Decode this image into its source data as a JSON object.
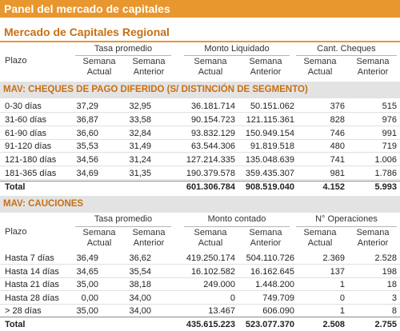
{
  "banner": {
    "title": "Panel del mercado de capitales"
  },
  "subtitle": "Mercado de Capitales Regional",
  "table1": {
    "plazo_label": "Plazo",
    "groups": [
      "Tasa promedio",
      "Monto Liquidado",
      "Cant. Cheques"
    ],
    "sub_top": [
      "Semana",
      "Semana",
      "Semana",
      "Semana",
      "Semana",
      "Semana"
    ],
    "sub_bottom": [
      "Actual",
      "Anterior",
      "Actual",
      "Anterior",
      "Actual",
      "Anterior"
    ],
    "section": "MAV: CHEQUES DE PAGO DIFERIDO (S/ DISTINCIÓN DE SEGMENTO)",
    "rows": [
      {
        "label": "0-30 días",
        "values": [
          "37,29",
          "32,95",
          "36.181.714",
          "50.151.062",
          "376",
          "515"
        ]
      },
      {
        "label": "31-60 días",
        "values": [
          "36,87",
          "33,58",
          "90.154.723",
          "121.115.361",
          "828",
          "976"
        ]
      },
      {
        "label": "61-90 días",
        "values": [
          "36,60",
          "32,84",
          "93.832.129",
          "150.949.154",
          "746",
          "991"
        ]
      },
      {
        "label": "91-120 días",
        "values": [
          "35,53",
          "31,49",
          "63.544.306",
          "91.819.518",
          "480",
          "719"
        ]
      },
      {
        "label": "121-180 días",
        "values": [
          "34,56",
          "31,24",
          "127.214.335",
          "135.048.639",
          "741",
          "1.006"
        ]
      },
      {
        "label": "181-365 días",
        "values": [
          "34,69",
          "31,35",
          "190.379.578",
          "359.435.307",
          "981",
          "1.786"
        ]
      },
      {
        "label": "Total",
        "values": [
          "",
          "",
          "601.306.784",
          "908.519.040",
          "4.152",
          "5.993"
        ]
      }
    ]
  },
  "table2": {
    "section": "MAV: CAUCIONES",
    "plazo_label": "Plazo",
    "groups": [
      "Tasa promedio",
      "Monto contado",
      "N° Operaciones"
    ],
    "sub_top": [
      "Semana",
      "Semana",
      "Semana",
      "Semana",
      "Semana",
      "Semana"
    ],
    "sub_bottom": [
      "Actual",
      "Anterior",
      "Actual",
      "Anterior",
      "Actual",
      "Anterior"
    ],
    "rows": [
      {
        "label": "Hasta 7 días",
        "values": [
          "36,49",
          "36,62",
          "419.250.174",
          "504.110.726",
          "2.369",
          "2.528"
        ]
      },
      {
        "label": "Hasta 14 días",
        "values": [
          "34,65",
          "35,54",
          "16.102.582",
          "16.162.645",
          "137",
          "198"
        ]
      },
      {
        "label": "Hasta 21 días",
        "values": [
          "35,00",
          "38,18",
          "249.000",
          "1.448.200",
          "1",
          "18"
        ]
      },
      {
        "label": "Hasta 28 días",
        "values": [
          "0,00",
          "34,00",
          "0",
          "749.709",
          "0",
          "3"
        ]
      },
      {
        "label": "> 28 días",
        "values": [
          "35,00",
          "34,00",
          "13.467",
          "606.090",
          "1",
          "8"
        ]
      },
      {
        "label": "Total",
        "values": [
          "",
          "",
          "435.615.223",
          "523.077.370",
          "2.508",
          "2.755"
        ]
      }
    ]
  }
}
